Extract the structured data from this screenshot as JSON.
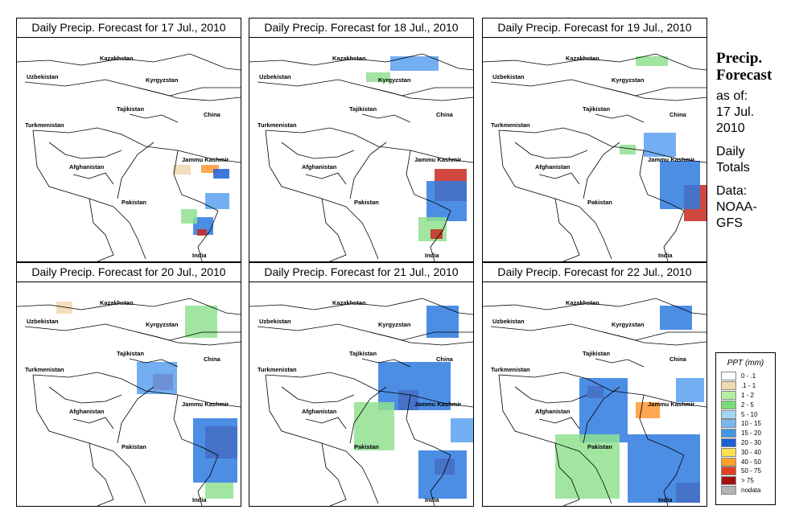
{
  "panels": [
    {
      "title": "Daily Precip. Forecast for  17 Jul., 2010",
      "rain": [
        [
          250,
          205,
          22,
          10,
          "#ff9933"
        ],
        [
          265,
          210,
          20,
          12,
          "#1e5fd6"
        ],
        [
          255,
          240,
          30,
          20,
          "#5aa0f0"
        ],
        [
          240,
          270,
          25,
          22,
          "#2e7ae0"
        ],
        [
          245,
          285,
          12,
          8,
          "#c8281e"
        ],
        [
          215,
          205,
          22,
          12,
          "#f0d8b0"
        ],
        [
          225,
          260,
          20,
          18,
          "#90e090"
        ]
      ]
    },
    {
      "title": "Daily Precip. Forecast for  18 Jul., 2010",
      "rain": [
        [
          485,
          70,
          60,
          18,
          "#5aa0f0"
        ],
        [
          540,
          210,
          40,
          40,
          "#c8281e"
        ],
        [
          530,
          225,
          50,
          50,
          "#2e7ae0"
        ],
        [
          520,
          270,
          35,
          30,
          "#90e090"
        ],
        [
          535,
          285,
          15,
          12,
          "#c8281e"
        ],
        [
          455,
          90,
          30,
          12,
          "#90e090"
        ]
      ]
    },
    {
      "title": "Daily Precip. Forecast for  19 Jul., 2010",
      "rain": [
        [
          790,
          70,
          40,
          12,
          "#90e090"
        ],
        [
          850,
          230,
          35,
          45,
          "#c8281e"
        ],
        [
          820,
          200,
          50,
          60,
          "#2e7ae0"
        ],
        [
          800,
          165,
          40,
          30,
          "#5aa0f0"
        ],
        [
          770,
          180,
          20,
          12,
          "#90e090"
        ]
      ]
    },
    {
      "title": "Daily Precip. Forecast for  20 Jul., 2010",
      "rain": [
        [
          190,
          465,
          25,
          20,
          "#c8281e"
        ],
        [
          170,
          450,
          50,
          40,
          "#5aa0f0"
        ],
        [
          255,
          530,
          40,
          40,
          "#c8281e"
        ],
        [
          240,
          520,
          55,
          80,
          "#2e7ae0"
        ],
        [
          255,
          600,
          35,
          20,
          "#90e090"
        ],
        [
          230,
          380,
          40,
          40,
          "#90e090"
        ],
        [
          70,
          375,
          20,
          15,
          "#f0d8b0"
        ]
      ]
    },
    {
      "title": "Daily Precip. Forecast for  21 Jul., 2010",
      "rain": [
        [
          495,
          485,
          25,
          25,
          "#c8281e"
        ],
        [
          470,
          450,
          90,
          60,
          "#2e7ae0"
        ],
        [
          540,
          570,
          25,
          20,
          "#c8281e"
        ],
        [
          520,
          560,
          60,
          60,
          "#2e7ae0"
        ],
        [
          530,
          380,
          40,
          40,
          "#2e7ae0"
        ],
        [
          440,
          500,
          50,
          60,
          "#90e090"
        ],
        [
          560,
          520,
          30,
          30,
          "#5aa0f0"
        ]
      ]
    },
    {
      "title": "Daily Precip. Forecast for  22 Jul., 2010",
      "rain": [
        [
          730,
          480,
          20,
          15,
          "#c8281e"
        ],
        [
          790,
          500,
          30,
          20,
          "#ff9933"
        ],
        [
          720,
          470,
          60,
          80,
          "#2e7ae0"
        ],
        [
          840,
          600,
          30,
          25,
          "#c8281e"
        ],
        [
          780,
          540,
          90,
          85,
          "#2e7ae0"
        ],
        [
          820,
          380,
          40,
          30,
          "#2e7ae0"
        ],
        [
          690,
          540,
          80,
          80,
          "#90e090"
        ],
        [
          840,
          470,
          35,
          30,
          "#5aa0f0"
        ]
      ]
    }
  ],
  "map_labels": [
    "Kazakhstan",
    "Uzbekistan",
    "Kyrgyzstan",
    "Tajikistan",
    "China",
    "Turkmenistan",
    "Jammu Kashmir",
    "Afghanistan",
    "Pakistan",
    "India"
  ],
  "side": {
    "title_line1": "Precip.",
    "title_line2": "Forecast",
    "asof": "as of:",
    "date1": "17 Jul.",
    "date2": "2010",
    "daily1": "Daily",
    "daily2": "Totals",
    "data1": "Data:",
    "data2": "NOAA-",
    "data3": "GFS"
  },
  "legend": {
    "title": "PPT (mm)",
    "items": [
      {
        "label": "0 - .1",
        "color": "#ffffff"
      },
      {
        "label": ".1 - 1",
        "color": "#f0d8b0"
      },
      {
        "label": "1 - 2",
        "color": "#b4f0a0"
      },
      {
        "label": "2 - 5",
        "color": "#78dc78"
      },
      {
        "label": "5 - 10",
        "color": "#a0d8f0"
      },
      {
        "label": "10 - 15",
        "color": "#78b8f0"
      },
      {
        "label": "15 - 20",
        "color": "#4696e6"
      },
      {
        "label": "20 - 30",
        "color": "#1e5fd6"
      },
      {
        "label": "30 - 40",
        "color": "#ffe050"
      },
      {
        "label": "40 - 50",
        "color": "#ffa028"
      },
      {
        "label": "50 - 75",
        "color": "#e04020"
      },
      {
        "label": "> 75",
        "color": "#a01010"
      },
      {
        "label": "nodata",
        "color": "#b4b4b4"
      }
    ]
  }
}
